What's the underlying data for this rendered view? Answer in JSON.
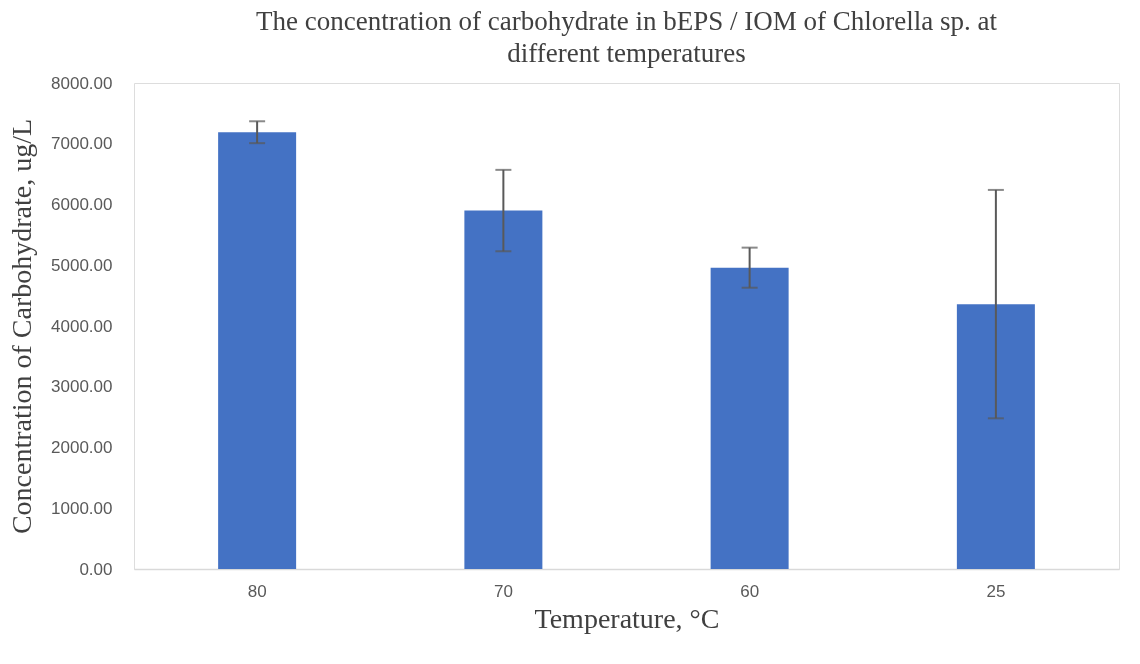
{
  "chart_data": {
    "type": "bar",
    "title": "The concentration of carbohydrate in bEPS / IOM of Chlorella sp. at different temperatures",
    "xlabel": "Temperature, °C",
    "ylabel": "Concentration of Carbohydrate, ug/L",
    "categories": [
      "80",
      "70",
      "60",
      "25"
    ],
    "series": [
      {
        "color": "#4472c4",
        "values": [
          7190,
          5900,
          4960,
          4360
        ],
        "errors": [
          180,
          670,
          330,
          1880
        ]
      }
    ],
    "ylim": [
      0,
      8000
    ],
    "yticks": [
      {
        "value": 0,
        "label": "0.00"
      },
      {
        "value": 1000,
        "label": "1000.00"
      },
      {
        "value": 2000,
        "label": "2000.00"
      },
      {
        "value": 3000,
        "label": "3000.00"
      },
      {
        "value": 4000,
        "label": "4000.00"
      },
      {
        "value": 5000,
        "label": "5000.00"
      },
      {
        "value": 6000,
        "label": "6000.00"
      },
      {
        "value": 7000,
        "label": "7000.00"
      },
      {
        "value": 8000,
        "label": "8000.00"
      }
    ],
    "grid": false
  }
}
